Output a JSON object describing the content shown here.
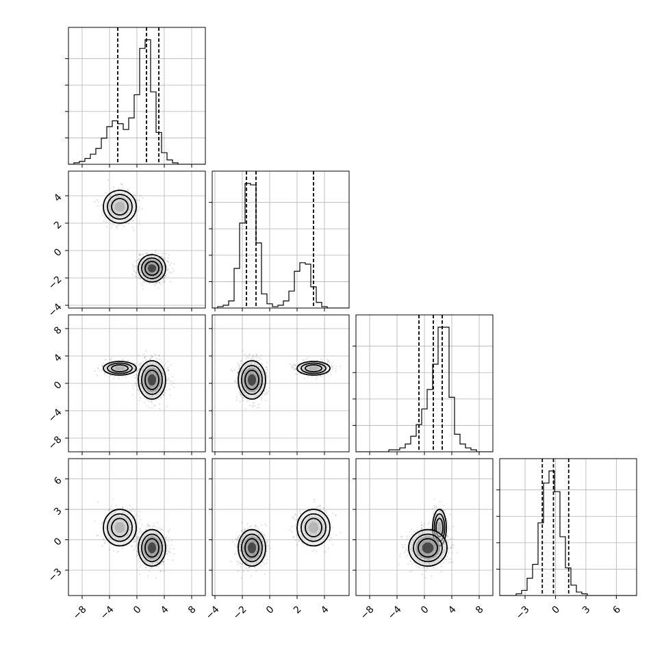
{
  "chart_data": {
    "type": "corner",
    "variables": 4,
    "parameter_labels": [],
    "ranges": [
      [
        -10,
        10
      ],
      [
        -4.2,
        5.8
      ],
      [
        -10,
        10
      ],
      [
        -5.5,
        8.0
      ]
    ],
    "ticks": [
      [
        -8,
        -4,
        0,
        4,
        8
      ],
      [
        -4,
        -2,
        0,
        2,
        4
      ],
      [
        -8,
        -4,
        0,
        4,
        8
      ],
      [
        -3,
        0,
        3,
        6
      ]
    ],
    "tick_labels": [
      [
        "−8",
        "−4",
        "0",
        "4",
        "8"
      ],
      [
        "−4",
        "−2",
        "0",
        "2",
        "4"
      ],
      [
        "−8",
        "−4",
        "0",
        "4",
        "8"
      ],
      [
        "−3",
        "0",
        "3",
        "6"
      ]
    ],
    "quantiles": [
      [
        -2.8,
        1.4,
        3.2
      ],
      [
        -1.7,
        -1.0,
        3.2
      ],
      [
        -0.8,
        1.3,
        2.6
      ],
      [
        -1.3,
        -0.2,
        1.3
      ]
    ],
    "histograms": [
      {
        "bin_start": -10,
        "bin_width": 0.8,
        "counts": [
          0,
          1,
          2,
          4,
          7,
          11,
          18,
          26,
          30,
          28,
          24,
          32,
          48,
          80,
          86,
          50,
          22,
          8,
          3,
          1,
          0,
          0,
          0,
          0,
          0
        ]
      },
      {
        "bin_start": -4.2,
        "bin_width": 0.4,
        "counts": [
          0,
          1,
          2,
          5,
          28,
          60,
          88,
          87,
          46,
          10,
          3,
          1,
          2,
          5,
          12,
          26,
          32,
          31,
          15,
          4,
          1,
          0,
          0,
          0,
          0
        ]
      },
      {
        "bin_start": -10,
        "bin_width": 0.8,
        "counts": [
          0,
          0,
          0,
          0,
          0,
          0,
          1,
          1,
          2,
          4,
          8,
          14,
          22,
          32,
          45,
          64,
          64,
          28,
          9,
          4,
          2,
          1,
          0,
          0,
          0
        ]
      },
      {
        "bin_start": -5.5,
        "bin_width": 0.54,
        "counts": [
          0,
          0,
          0,
          1,
          3,
          10,
          18,
          42,
          65,
          72,
          60,
          34,
          16,
          6,
          2,
          1,
          0,
          0,
          0,
          0,
          0,
          0,
          0,
          0,
          0
        ]
      }
    ],
    "modes": [
      {
        "weight": 0.35,
        "mean": [
          -2.5,
          3.2,
          2.2,
          1.2
        ],
        "sd": [
          1.2,
          0.6,
          0.5,
          0.9
        ]
      },
      {
        "weight": 0.65,
        "mean": [
          2.2,
          -1.3,
          0.5,
          -0.8
        ],
        "sd": [
          1.0,
          0.5,
          1.4,
          0.9
        ]
      }
    ],
    "contour_levels": [
      "1sigma",
      "1.5sigma",
      "2sigma"
    ],
    "grid": true
  }
}
